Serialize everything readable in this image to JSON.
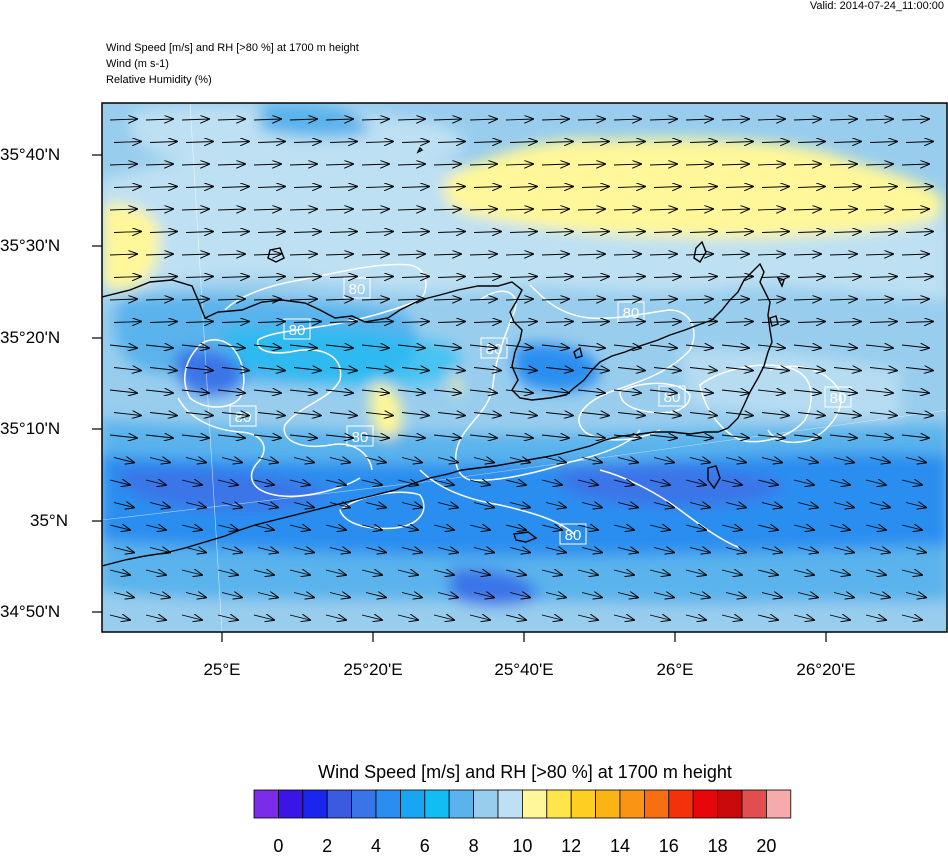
{
  "header": {
    "valid": "Valid: 2014-07-24_11:00:00",
    "line1": "Wind Speed [m/s] and RH [>80 %] at 1700 m height",
    "line2": "Wind   (m s-1)",
    "line3": "Relative Humidity   (%)"
  },
  "axes": {
    "lat_labels": [
      "35°40'N",
      "35°30'N",
      "35°20'N",
      "35°10'N",
      "35°N",
      "34°50'N"
    ],
    "lon_labels": [
      "25°E",
      "25°20'E",
      "25°40'E",
      "26°E",
      "26°20'E"
    ]
  },
  "contours": {
    "rh_level_label": "80"
  },
  "colorbar": {
    "title": "Wind Speed [m/s] and RH [>80 %] at 1700 m height",
    "labels": [
      "0",
      "2",
      "4",
      "6",
      "8",
      "10",
      "12",
      "14",
      "16",
      "18",
      "20"
    ],
    "colors": [
      "#7a2ce8",
      "#3a15e6",
      "#1a25ee",
      "#3a5be0",
      "#3a75e8",
      "#2a8ef0",
      "#18a6f2",
      "#12bcf5",
      "#5ab3ec",
      "#98cdee",
      "#bde0f3",
      "#fff799",
      "#fee54b",
      "#fccf22",
      "#fbb416",
      "#f99512",
      "#f76f10",
      "#f3320c",
      "#e6070c",
      "#c90a0a",
      "#e24d4d",
      "#f6aaaa"
    ]
  },
  "wind": {
    "direction": "east"
  }
}
